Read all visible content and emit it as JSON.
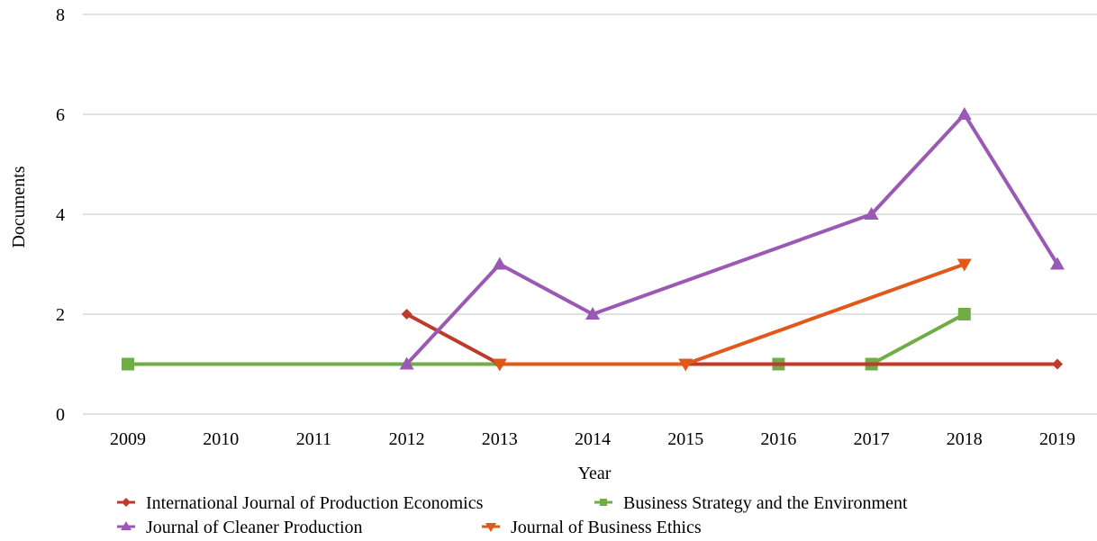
{
  "chart_data": {
    "type": "line",
    "xlabel": "Year",
    "ylabel": "Documents",
    "categories": [
      "2009",
      "2010",
      "2011",
      "2012",
      "2013",
      "2014",
      "2015",
      "2016",
      "2017",
      "2018",
      "2019"
    ],
    "ylim": [
      0,
      8
    ],
    "yticks": [
      "0",
      "2",
      "4",
      "6",
      "8"
    ],
    "grid": true,
    "legend_position": "bottom",
    "series": [
      {
        "name": "International Journal of Production Economics",
        "color": "#c0392b",
        "marker": "diamond",
        "points": [
          {
            "x": "2012",
            "y": 2
          },
          {
            "x": "2013",
            "y": 1
          },
          {
            "x": "2019",
            "y": 1
          }
        ]
      },
      {
        "name": "Business Strategy and the Environment",
        "color": "#70ad47",
        "marker": "square",
        "points": [
          {
            "x": "2009",
            "y": 1
          },
          {
            "x": "2016",
            "y": 1
          },
          {
            "x": "2017",
            "y": 1
          },
          {
            "x": "2018",
            "y": 2
          }
        ]
      },
      {
        "name": "Journal of Cleaner Production",
        "color": "#9b59b6",
        "marker": "triangle-up",
        "points": [
          {
            "x": "2012",
            "y": 1
          },
          {
            "x": "2013",
            "y": 3
          },
          {
            "x": "2014",
            "y": 2
          },
          {
            "x": "2017",
            "y": 4
          },
          {
            "x": "2018",
            "y": 6
          },
          {
            "x": "2019",
            "y": 3
          }
        ]
      },
      {
        "name": "Journal of Business Ethics",
        "color": "#e0591b",
        "marker": "triangle-down",
        "points": [
          {
            "x": "2013",
            "y": 1
          },
          {
            "x": "2015",
            "y": 1
          },
          {
            "x": "2018",
            "y": 3
          }
        ]
      }
    ]
  }
}
